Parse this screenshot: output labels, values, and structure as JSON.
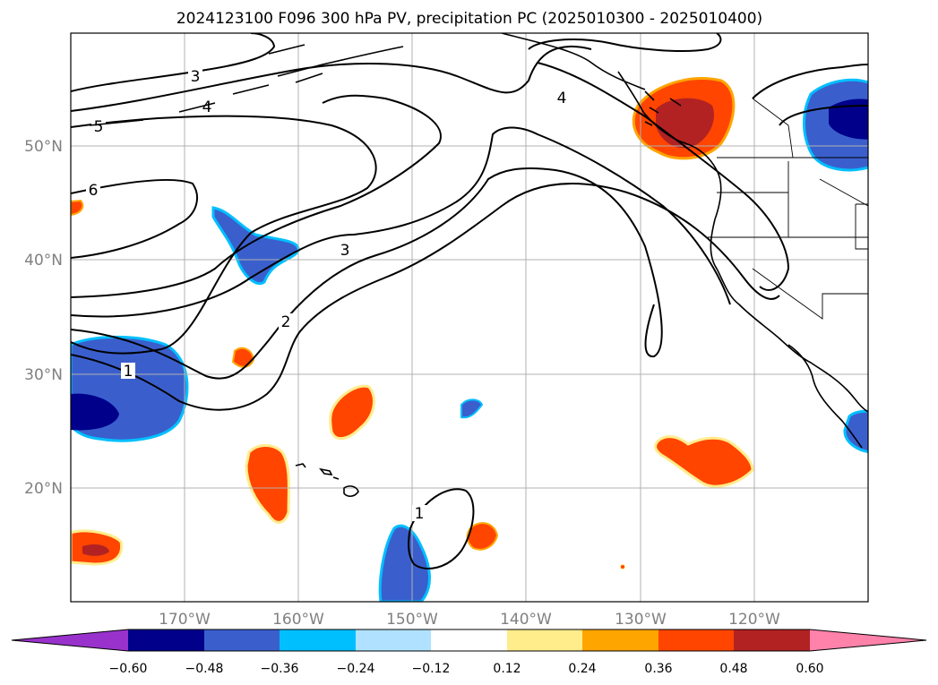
{
  "map": {
    "title": "2024123100 F096 300 hPa PV, precipitation PC (2025010300 - 2025010400)",
    "lon_labels": [
      "170°W",
      "160°W",
      "150°W",
      "140°W",
      "130°W",
      "120°W"
    ],
    "lat_labels": [
      "50°N",
      "40°N",
      "30°N",
      "20°N"
    ],
    "contour_labels": [
      "3",
      "4",
      "5",
      "6",
      "3",
      "2",
      "1",
      "4",
      "1"
    ]
  },
  "colorbar": {
    "tick_labels": [
      "−0.60",
      "−0.48",
      "−0.36",
      "−0.24",
      "−0.12",
      "0.12",
      "0.24",
      "0.36",
      "0.48",
      "0.60"
    ],
    "colors": [
      "#9932CC",
      "#00008B",
      "#3A5FCD",
      "#00BFFF",
      "#B0E2FF",
      "#FFFFFF",
      "#FFEC8B",
      "#FFA500",
      "#FF4500",
      "#B22222",
      "#FF82AB"
    ]
  }
}
